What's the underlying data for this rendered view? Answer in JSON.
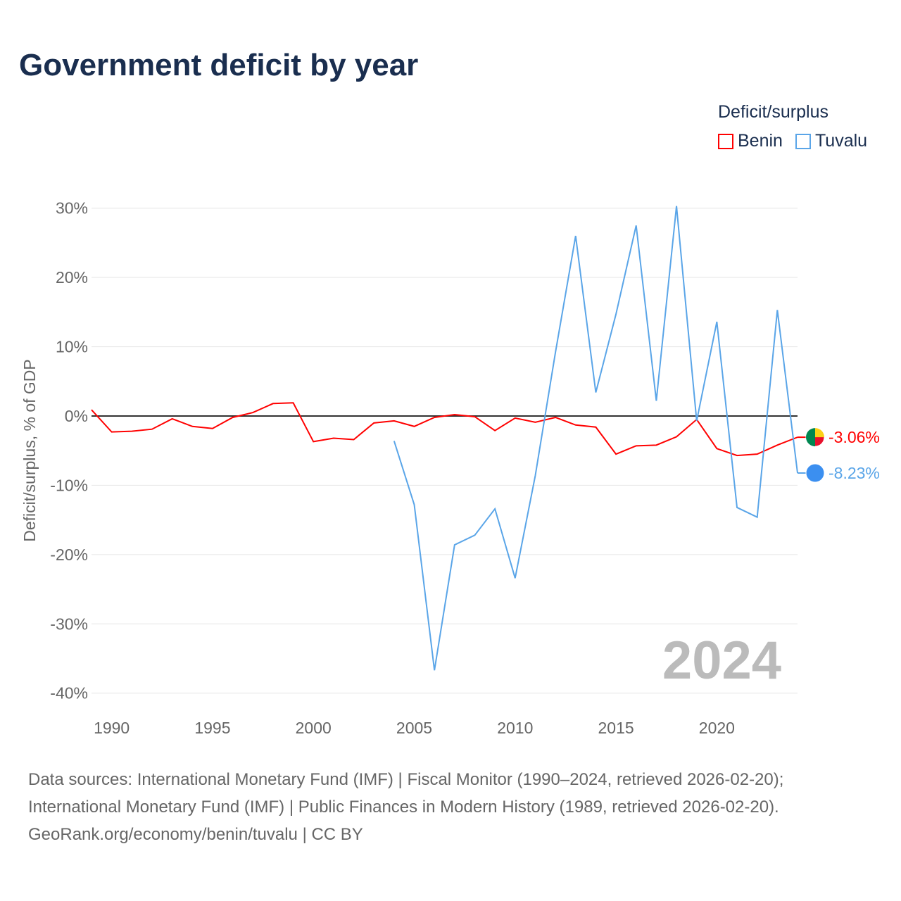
{
  "chart_data": {
    "type": "line",
    "title": "Government deficit by year",
    "ylabel": "Deficit/surplus, % of GDP",
    "xlabel": "",
    "ylim": [
      -40,
      30
    ],
    "xlim": [
      1989,
      2024
    ],
    "yticks": [
      {
        "v": 30,
        "label": "30%"
      },
      {
        "v": 20,
        "label": "20%"
      },
      {
        "v": 10,
        "label": "10%"
      },
      {
        "v": 0,
        "label": "0%"
      },
      {
        "v": -10,
        "label": "-10%"
      },
      {
        "v": -20,
        "label": "-20%"
      },
      {
        "v": -30,
        "label": "-30%"
      },
      {
        "v": -40,
        "label": "-40%"
      }
    ],
    "xticks": [
      {
        "v": 1990,
        "label": "1990"
      },
      {
        "v": 1995,
        "label": "1995"
      },
      {
        "v": 2000,
        "label": "2000"
      },
      {
        "v": 2005,
        "label": "2005"
      },
      {
        "v": 2010,
        "label": "2010"
      },
      {
        "v": 2015,
        "label": "2015"
      },
      {
        "v": 2020,
        "label": "2020"
      }
    ],
    "legend_title": "Deficit/surplus",
    "legend_placement": "top-right",
    "year_label": "2024",
    "series": [
      {
        "name": "Benin",
        "color": "#ff0000",
        "end_label": "-3.06%",
        "x_start": 1989,
        "values": [
          0.9,
          -2.3,
          -2.2,
          -1.9,
          -0.4,
          -1.5,
          -1.8,
          -0.2,
          0.5,
          1.8,
          1.9,
          -3.7,
          -3.2,
          -3.4,
          -1.0,
          -0.7,
          -1.5,
          -0.2,
          0.2,
          -0.1,
          -2.1,
          -0.3,
          -0.9,
          -0.2,
          -1.3,
          -1.6,
          -5.5,
          -4.3,
          -4.2,
          -3.0,
          -0.5,
          -4.7,
          -5.7,
          -5.5,
          -4.2,
          -3.06
        ]
      },
      {
        "name": "Tuvalu",
        "color": "#5aa5e8",
        "end_label": "-8.23%",
        "x_start": 2004,
        "values": [
          -3.6,
          -12.8,
          -36.7,
          -18.6,
          -17.2,
          -13.4,
          -23.4,
          -8.6,
          9.2,
          26.0,
          3.4,
          14.7,
          27.5,
          2.2,
          30.3,
          -0.7,
          13.6,
          -13.2,
          -14.6,
          15.3,
          -8.23
        ]
      }
    ]
  },
  "footer": {
    "line1": "Data sources: International Monetary Fund (IMF) | Fiscal Monitor (1990–2024, retrieved 2026-02-20);",
    "line2": "International Monetary Fund (IMF) | Public Finances in Modern History (1989, retrieved 2026-02-20).",
    "line3": "GeoRank.org/economy/benin/tuvalu | CC BY"
  }
}
